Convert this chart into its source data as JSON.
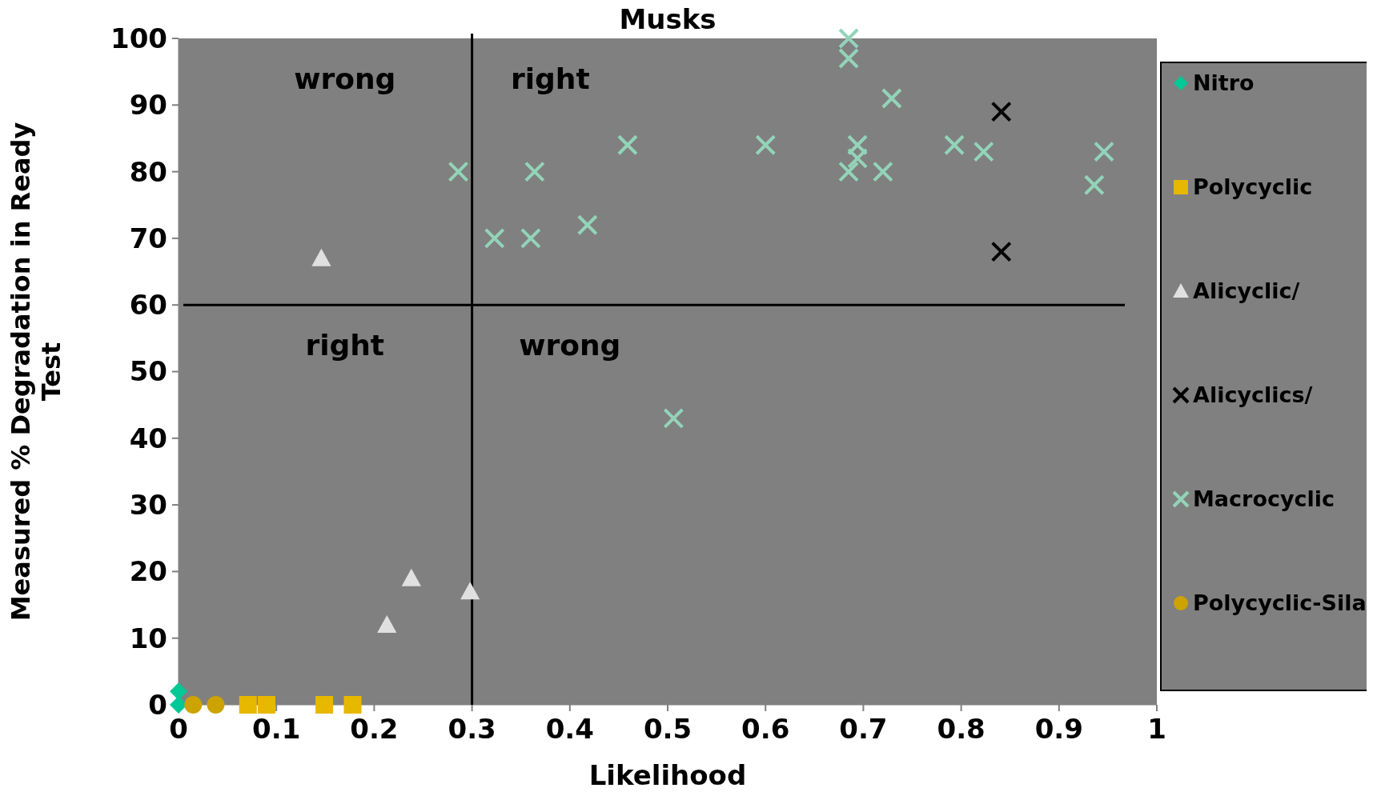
{
  "chart_data": {
    "type": "scatter",
    "title": "Musks",
    "xlabel": "Likelihood",
    "ylabel": "Measured % Degradation in Ready Test",
    "xlim": [
      0,
      1
    ],
    "xticks": [
      0,
      0.1,
      0.2,
      0.3,
      0.4,
      0.5,
      0.6,
      0.7,
      0.8,
      0.9,
      1
    ],
    "ylim": [
      0,
      100
    ],
    "yticks": [
      0,
      10,
      20,
      30,
      40,
      50,
      60,
      70,
      80,
      90,
      100
    ],
    "grid": false,
    "legend": "right",
    "ref_lines": [
      {
        "axis": "x",
        "value": 0.3,
        "color": "#000000"
      },
      {
        "axis": "y",
        "value": 60,
        "color": "#000000"
      }
    ],
    "annotations": [
      "wrong",
      "right",
      "right",
      "wrong"
    ],
    "series": [
      {
        "name": "Nitro",
        "color": "#00c896",
        "marker": "diamond",
        "x": [
          0,
          0
        ],
        "values": [
          0,
          2
        ]
      },
      {
        "name": "Polycyclic",
        "color": "#e6b800",
        "marker": "square",
        "x": [
          0.071,
          0.09,
          0.149,
          0.178
        ],
        "values": [
          0,
          0,
          0,
          0
        ]
      },
      {
        "name": "Alicyclic/",
        "color": "#e0e0e0",
        "marker": "triangle",
        "x": [
          0.146,
          0.213,
          0.238,
          0.298
        ],
        "values": [
          67,
          12,
          19,
          17
        ]
      },
      {
        "name": "Alicyclics/",
        "color": "#000000",
        "marker": "cross",
        "x": [
          0.841,
          0.841
        ],
        "values": [
          89,
          68
        ]
      },
      {
        "name": "Macrocyclic",
        "color": "#93d4b9",
        "marker": "cross",
        "x": [
          0.286,
          0.323,
          0.36,
          0.364,
          0.418,
          0.459,
          0.506,
          0.6,
          0.685,
          0.685,
          0.685,
          0.694,
          0.694,
          0.72,
          0.729,
          0.793,
          0.823,
          0.936,
          0.946
        ],
        "values": [
          80,
          70,
          70,
          80,
          72,
          84,
          43,
          84,
          100,
          97,
          80,
          84,
          82,
          80,
          91,
          84,
          83,
          78,
          83
        ]
      },
      {
        "name": "Polycyclic-Sila",
        "color": "#cca300",
        "marker": "circle",
        "x": [
          0.015,
          0.038
        ],
        "values": [
          0,
          0
        ]
      }
    ]
  }
}
